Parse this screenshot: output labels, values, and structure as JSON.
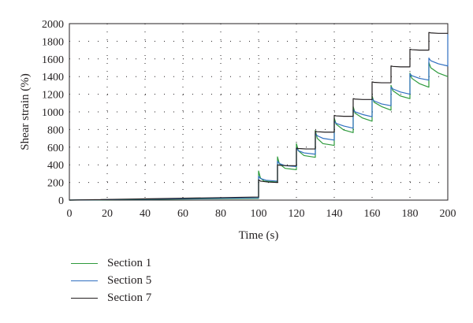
{
  "chart_data": {
    "type": "line",
    "xlabel": "Time (s)",
    "ylabel": "Shear strain (%)",
    "xlim": [
      0,
      200
    ],
    "ylim": [
      0,
      2000
    ],
    "x_ticks": [
      "0",
      "20",
      "40",
      "60",
      "80",
      "100",
      "120",
      "140",
      "160",
      "180",
      "200"
    ],
    "y_ticks": [
      "0",
      "200",
      "400",
      "600",
      "800",
      "1000",
      "1200",
      "1400",
      "1600",
      "1800",
      "2000"
    ],
    "grid": "dotted",
    "legend_position": "bottom-left",
    "series": [
      {
        "name": "Section 1",
        "color": "#2e9a3c",
        "points": [
          [
            0,
            0
          ],
          [
            100,
            20
          ],
          [
            100,
            330
          ],
          [
            101,
            250
          ],
          [
            103,
            215
          ],
          [
            110,
            205
          ],
          [
            110,
            490
          ],
          [
            111,
            410
          ],
          [
            114,
            360
          ],
          [
            120,
            345
          ],
          [
            120,
            640
          ],
          [
            121,
            560
          ],
          [
            124,
            505
          ],
          [
            130,
            485
          ],
          [
            130,
            790
          ],
          [
            131,
            700
          ],
          [
            134,
            640
          ],
          [
            140,
            620
          ],
          [
            140,
            930
          ],
          [
            141,
            860
          ],
          [
            145,
            795
          ],
          [
            150,
            765
          ],
          [
            150,
            1060
          ],
          [
            151,
            985
          ],
          [
            155,
            930
          ],
          [
            160,
            895
          ],
          [
            160,
            1180
          ],
          [
            161,
            1110
          ],
          [
            165,
            1060
          ],
          [
            170,
            1020
          ],
          [
            170,
            1300
          ],
          [
            171,
            1240
          ],
          [
            175,
            1180
          ],
          [
            180,
            1150
          ],
          [
            180,
            1440
          ],
          [
            181,
            1380
          ],
          [
            185,
            1320
          ],
          [
            190,
            1280
          ],
          [
            190,
            1560
          ],
          [
            191,
            1500
          ],
          [
            195,
            1440
          ],
          [
            200,
            1400
          ]
        ]
      },
      {
        "name": "Section 5",
        "color": "#2f6fc0",
        "points": [
          [
            0,
            0
          ],
          [
            100,
            25
          ],
          [
            100,
            270
          ],
          [
            101,
            245
          ],
          [
            104,
            225
          ],
          [
            110,
            215
          ],
          [
            110,
            440
          ],
          [
            111,
            415
          ],
          [
            114,
            390
          ],
          [
            120,
            380
          ],
          [
            120,
            590
          ],
          [
            121,
            560
          ],
          [
            124,
            535
          ],
          [
            130,
            520
          ],
          [
            130,
            755
          ],
          [
            131,
            730
          ],
          [
            134,
            700
          ],
          [
            140,
            680
          ],
          [
            140,
            895
          ],
          [
            141,
            870
          ],
          [
            145,
            840
          ],
          [
            150,
            815
          ],
          [
            150,
            1025
          ],
          [
            151,
            1000
          ],
          [
            155,
            970
          ],
          [
            160,
            945
          ],
          [
            160,
            1150
          ],
          [
            161,
            1125
          ],
          [
            165,
            1090
          ],
          [
            170,
            1070
          ],
          [
            170,
            1280
          ],
          [
            171,
            1260
          ],
          [
            175,
            1225
          ],
          [
            180,
            1200
          ],
          [
            180,
            1430
          ],
          [
            181,
            1410
          ],
          [
            185,
            1380
          ],
          [
            190,
            1360
          ],
          [
            190,
            1610
          ],
          [
            191,
            1580
          ],
          [
            195,
            1545
          ],
          [
            200,
            1520
          ],
          [
            200,
            1880
          ]
        ]
      },
      {
        "name": "Section 7",
        "color": "#231f20",
        "points": [
          [
            0,
            0
          ],
          [
            100,
            35
          ],
          [
            100,
            230
          ],
          [
            101,
            215
          ],
          [
            105,
            205
          ],
          [
            110,
            200
          ],
          [
            110,
            400
          ],
          [
            111,
            395
          ],
          [
            115,
            390
          ],
          [
            120,
            390
          ],
          [
            120,
            590
          ],
          [
            121,
            585
          ],
          [
            125,
            580
          ],
          [
            130,
            580
          ],
          [
            130,
            780
          ],
          [
            131,
            775
          ],
          [
            135,
            770
          ],
          [
            140,
            770
          ],
          [
            140,
            960
          ],
          [
            141,
            955
          ],
          [
            145,
            950
          ],
          [
            150,
            950
          ],
          [
            150,
            1150
          ],
          [
            151,
            1145
          ],
          [
            155,
            1140
          ],
          [
            160,
            1140
          ],
          [
            160,
            1340
          ],
          [
            161,
            1335
          ],
          [
            165,
            1330
          ],
          [
            170,
            1330
          ],
          [
            170,
            1520
          ],
          [
            171,
            1515
          ],
          [
            175,
            1510
          ],
          [
            180,
            1510
          ],
          [
            180,
            1710
          ],
          [
            181,
            1705
          ],
          [
            185,
            1700
          ],
          [
            190,
            1700
          ],
          [
            190,
            1900
          ],
          [
            191,
            1895
          ],
          [
            195,
            1890
          ],
          [
            200,
            1890
          ]
        ]
      }
    ]
  }
}
